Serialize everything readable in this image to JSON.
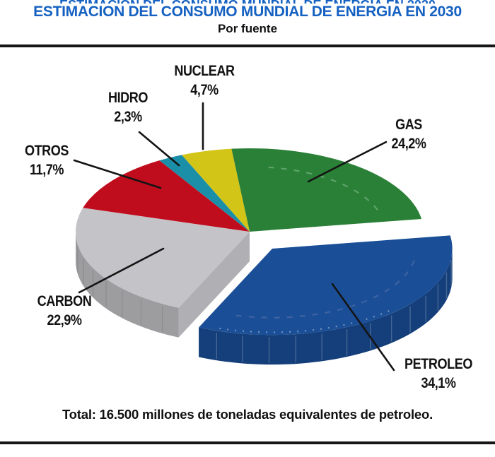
{
  "colors": {
    "title_blue": "#1561c2",
    "text_black": "#111111",
    "rule_black": "#161616",
    "leader_line": "#141414"
  },
  "chart_data": {
    "type": "pie",
    "style": "3d-exploded",
    "title": "ESTIMACION DEL CONSUMO MUNDIAL DE ENERGIA EN 2030",
    "subtitle": "Por fuente",
    "unit": "%",
    "legend_position": "none",
    "labels_with_leader_lines": true,
    "slices": [
      {
        "label": "GAS",
        "value": 24.2,
        "display": "24,2%",
        "color": "#2a8036",
        "exploded": false
      },
      {
        "label": "PETROLEO",
        "value": 34.1,
        "display": "34,1%",
        "color": "#1a4f98",
        "exploded": true
      },
      {
        "label": "CARBON",
        "value": 22.9,
        "display": "22,9%",
        "color": "#c4c4c8",
        "exploded": false
      },
      {
        "label": "OTROS",
        "value": 11.7,
        "display": "11,7%",
        "color": "#c00d1e",
        "exploded": false
      },
      {
        "label": "HIDRO",
        "value": 2.3,
        "display": "2,3%",
        "color": "#1b8fa8",
        "exploded": false
      },
      {
        "label": "NUCLEAR",
        "value": 4.7,
        "display": "4,7%",
        "color": "#d3c418",
        "exploded": false
      }
    ],
    "total_note": "Total: 16.500 millones de toneladas equivalentes de petroleo."
  }
}
